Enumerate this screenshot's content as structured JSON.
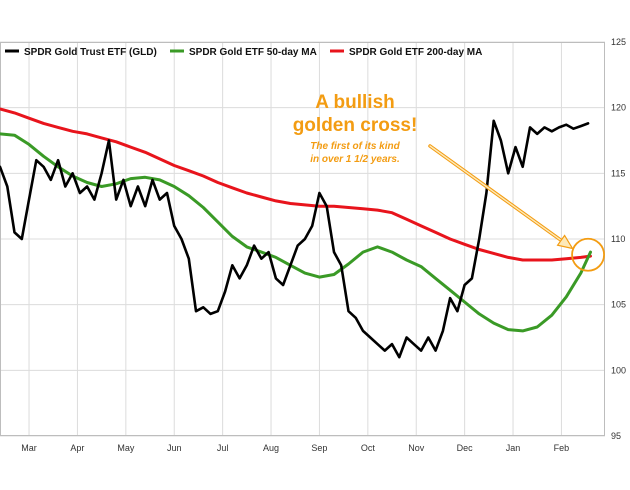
{
  "chart_data": {
    "type": "line",
    "title": "",
    "xlabel": "",
    "ylabel": "",
    "ylim": [
      95,
      125
    ],
    "yticks": [
      95,
      100,
      105,
      110,
      115,
      120,
      125
    ],
    "months": [
      "Mar",
      "Apr",
      "May",
      "Jun",
      "Jul",
      "Aug",
      "Sep",
      "Oct",
      "Nov",
      "Dec",
      "Jan",
      "Feb"
    ],
    "month_positions": [
      1,
      2,
      3,
      4,
      5,
      6,
      7,
      8,
      9,
      10,
      11,
      12
    ],
    "x_range": [
      0.4,
      12.9
    ],
    "grid": true,
    "legend_position": "top-left",
    "series": [
      {
        "name": "SPDR Gold Trust ETF (GLD)",
        "color": "#000000",
        "x": [
          0.4,
          0.55,
          0.7,
          0.85,
          1.0,
          1.15,
          1.3,
          1.45,
          1.6,
          1.75,
          1.9,
          2.05,
          2.2,
          2.35,
          2.5,
          2.65,
          2.8,
          2.95,
          3.1,
          3.25,
          3.4,
          3.55,
          3.7,
          3.85,
          4.0,
          4.15,
          4.3,
          4.45,
          4.6,
          4.75,
          4.9,
          5.05,
          5.2,
          5.35,
          5.5,
          5.65,
          5.8,
          5.95,
          6.1,
          6.25,
          6.4,
          6.55,
          6.7,
          6.85,
          7.0,
          7.15,
          7.3,
          7.45,
          7.6,
          7.75,
          7.9,
          8.05,
          8.2,
          8.35,
          8.5,
          8.65,
          8.8,
          8.95,
          9.1,
          9.25,
          9.4,
          9.55,
          9.7,
          9.85,
          10.0,
          10.15,
          10.3,
          10.45,
          10.6,
          10.75,
          10.9,
          11.05,
          11.2,
          11.35,
          11.5,
          11.65,
          11.8,
          11.95,
          12.1,
          12.25,
          12.4,
          12.55
        ],
        "y": [
          115.5,
          114.0,
          110.5,
          110.0,
          113.0,
          116.0,
          115.5,
          114.5,
          116.0,
          114.0,
          115.0,
          113.5,
          114.0,
          113.0,
          115.0,
          117.5,
          113.0,
          114.5,
          112.5,
          114.0,
          112.5,
          114.5,
          113.0,
          113.5,
          111.0,
          110.0,
          108.5,
          104.5,
          104.8,
          104.3,
          104.5,
          106.0,
          108.0,
          107.0,
          108.0,
          109.5,
          108.5,
          109.0,
          107.0,
          106.5,
          108.0,
          109.5,
          110.0,
          111.0,
          113.5,
          112.5,
          109.0,
          108.0,
          104.5,
          104.0,
          103.0,
          102.5,
          102.0,
          101.5,
          102.0,
          101.0,
          102.5,
          102.0,
          101.5,
          102.5,
          101.5,
          103.0,
          105.5,
          104.5,
          106.5,
          107.0,
          110.0,
          113.5,
          119.0,
          117.5,
          115.0,
          117.0,
          115.5,
          118.5,
          118.0,
          118.5,
          118.2,
          118.5,
          118.7,
          118.4,
          118.6,
          118.8
        ]
      },
      {
        "name": "SPDR Gold ETF 50-day MA",
        "color": "#3a9a26",
        "x": [
          0.4,
          0.7,
          1.0,
          1.3,
          1.6,
          1.9,
          2.2,
          2.5,
          2.8,
          3.1,
          3.4,
          3.7,
          4.0,
          4.3,
          4.6,
          4.9,
          5.2,
          5.5,
          5.8,
          6.1,
          6.4,
          6.7,
          7.0,
          7.3,
          7.6,
          7.9,
          8.2,
          8.5,
          8.8,
          9.1,
          9.4,
          9.7,
          10.0,
          10.3,
          10.6,
          10.9,
          11.2,
          11.5,
          11.8,
          12.1,
          12.4,
          12.6
        ],
        "y": [
          118.0,
          117.9,
          117.2,
          116.3,
          115.5,
          114.8,
          114.3,
          114.0,
          114.2,
          114.6,
          114.7,
          114.5,
          114.0,
          113.3,
          112.4,
          111.3,
          110.2,
          109.4,
          109.0,
          108.6,
          108.0,
          107.4,
          107.1,
          107.3,
          108.1,
          109.0,
          109.4,
          109.0,
          108.4,
          107.9,
          107.0,
          106.1,
          105.2,
          104.3,
          103.6,
          103.1,
          103.0,
          103.3,
          104.2,
          105.6,
          107.4,
          109.0
        ]
      },
      {
        "name": "SPDR Gold ETF 200-day MA",
        "color": "#e8141c",
        "x": [
          0.4,
          0.7,
          1.0,
          1.3,
          1.6,
          1.9,
          2.2,
          2.5,
          2.8,
          3.1,
          3.4,
          3.7,
          4.0,
          4.3,
          4.6,
          4.9,
          5.2,
          5.5,
          5.8,
          6.1,
          6.4,
          6.7,
          7.0,
          7.3,
          7.6,
          7.9,
          8.2,
          8.5,
          8.8,
          9.1,
          9.4,
          9.7,
          10.0,
          10.3,
          10.6,
          10.9,
          11.2,
          11.5,
          11.8,
          12.1,
          12.4,
          12.6
        ],
        "y": [
          119.9,
          119.6,
          119.2,
          118.8,
          118.5,
          118.2,
          118.0,
          117.7,
          117.4,
          117.0,
          116.6,
          116.1,
          115.6,
          115.2,
          114.8,
          114.3,
          113.9,
          113.5,
          113.2,
          112.9,
          112.7,
          112.6,
          112.5,
          112.5,
          112.4,
          112.3,
          112.2,
          112.0,
          111.5,
          111.0,
          110.5,
          110.0,
          109.6,
          109.2,
          108.9,
          108.6,
          108.4,
          108.4,
          108.4,
          108.5,
          108.6,
          108.7
        ]
      }
    ],
    "annotations": [
      {
        "title_line1": "A bullish",
        "title_line2": "golden cross!",
        "subtitle_line1": "The first of its kind",
        "subtitle_line2": "in over 1 1/2 years.",
        "color": "#f39c12",
        "target_x": 12.55,
        "target_y": 108.8
      }
    ]
  }
}
